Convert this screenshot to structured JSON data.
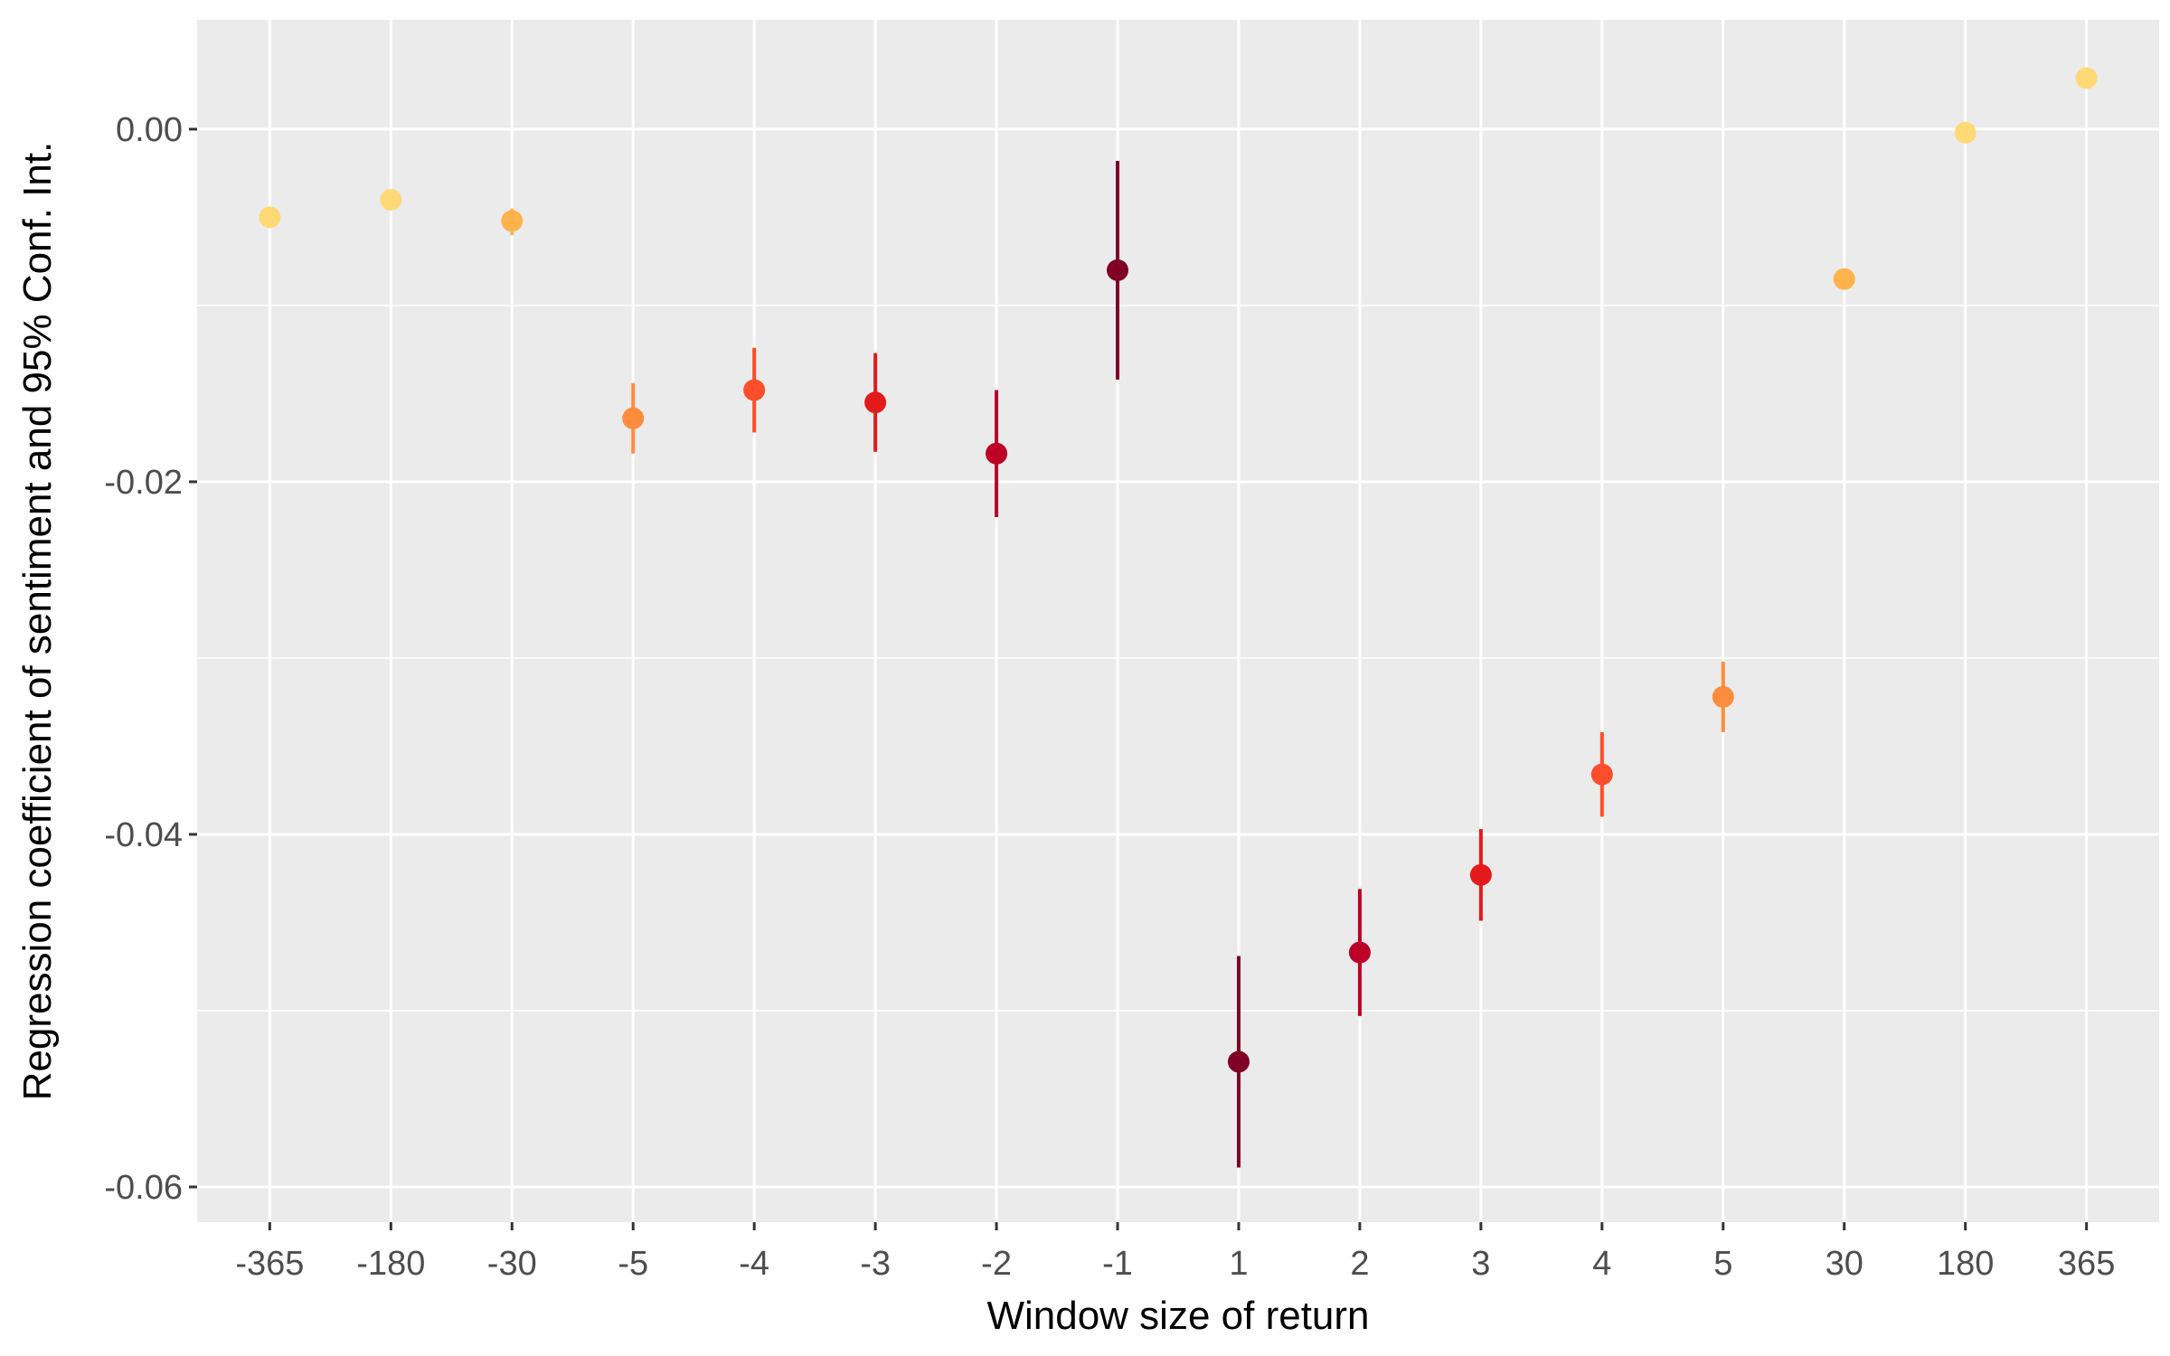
{
  "chart_data": {
    "type": "scatter",
    "title": "",
    "xlabel": "Window size of return",
    "ylabel": "Regression coefficient of sentiment and 95% Conf. Int.",
    "categories": [
      "-365",
      "-180",
      "-30",
      "-5",
      "-4",
      "-3",
      "-2",
      "-1",
      "1",
      "2",
      "3",
      "4",
      "5",
      "30",
      "180",
      "365"
    ],
    "values": [
      -0.005,
      -0.004,
      -0.0052,
      -0.0164,
      -0.0148,
      -0.0155,
      -0.0184,
      -0.008,
      -0.0529,
      -0.0467,
      -0.0423,
      -0.0366,
      -0.0322,
      -0.0085,
      -0.0002,
      0.0029
    ],
    "ci_low": [
      -0.0052,
      -0.0042,
      -0.006,
      -0.0184,
      -0.0172,
      -0.0183,
      -0.022,
      -0.0142,
      -0.0589,
      -0.0503,
      -0.0449,
      -0.039,
      -0.0342,
      -0.0091,
      -0.0004,
      0.0027
    ],
    "ci_high": [
      -0.0048,
      -0.0038,
      -0.0045,
      -0.0144,
      -0.0124,
      -0.0127,
      -0.0148,
      -0.0018,
      -0.0469,
      -0.0431,
      -0.0397,
      -0.0342,
      -0.0302,
      -0.0079,
      0.0,
      0.0031
    ],
    "colors": [
      "#fed976",
      "#fed976",
      "#feb24c",
      "#fd8d3c",
      "#fc4e2a",
      "#e31a1c",
      "#bd0026",
      "#800026",
      "#800026",
      "#bd0026",
      "#e31a1c",
      "#fc4e2a",
      "#fd8d3c",
      "#feb24c",
      "#fed976",
      "#fed976"
    ],
    "ylim": [
      -0.062,
      0.0062
    ],
    "yticks": [
      0.0,
      -0.02,
      -0.04,
      -0.06
    ],
    "ytick_labels": [
      "0.00",
      "-0.02",
      "-0.04",
      "-0.06"
    ],
    "grid": true,
    "panel_color": "#ebebeb",
    "grid_color": "#ffffff",
    "legend": "none"
  }
}
